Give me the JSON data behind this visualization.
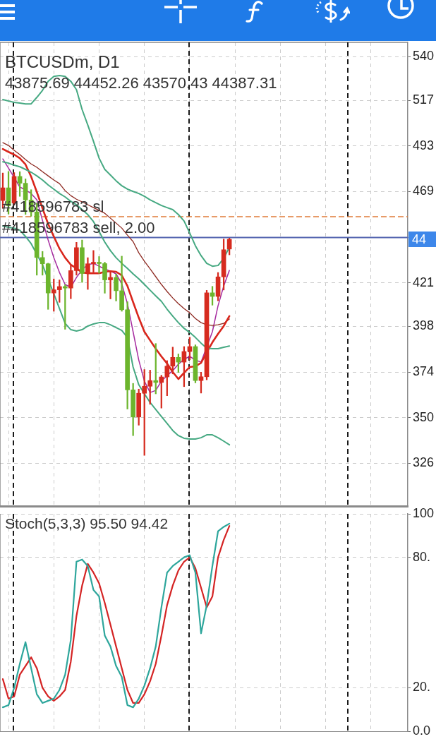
{
  "chart_data": [
    {
      "type": "candlestick",
      "title": "BTCUSDm, D1",
      "subtitle": "43875.69 44452.26 43570.43 44387.31",
      "categories": [
        null,
        null,
        null,
        null,
        null,
        null,
        null,
        null,
        null,
        null,
        null,
        null,
        null,
        null,
        null,
        null,
        null,
        null,
        null,
        null,
        null,
        null,
        null,
        null,
        null,
        null,
        null,
        null,
        null,
        null,
        null,
        null,
        null,
        null,
        null,
        null,
        null,
        null,
        null,
        null,
        null,
        null,
        null,
        null,
        null,
        null,
        null,
        null,
        null,
        null,
        null,
        null,
        null,
        null,
        null,
        null,
        null,
        null,
        null,
        null,
        null,
        null,
        null,
        null,
        null,
        null,
        null,
        null,
        null,
        null,
        null,
        null
      ],
      "ohlc": [
        [
          464.3,
          478.8,
          460.2,
          471.0
        ],
        [
          471.0,
          479.6,
          457.2,
          461.5
        ],
        [
          463.0,
          479.0,
          462.0,
          477.0
        ],
        [
          477.0,
          479.5,
          466.5,
          473.4
        ],
        [
          473.4,
          475.7,
          457.0,
          464.6
        ],
        [
          464.6,
          470.0,
          456.0,
          458.3
        ],
        [
          458.3,
          463.0,
          425.0,
          434.3
        ],
        [
          434.3,
          437.5,
          425.0,
          431.0
        ],
        [
          431.0,
          431.3,
          407.0,
          415.6
        ],
        [
          415.6,
          423.0,
          406.0,
          417.3
        ],
        [
          417.3,
          422.5,
          410.7,
          419.0
        ],
        [
          419.0,
          420.0,
          396.5,
          418.2
        ],
        [
          418.2,
          430.0,
          412.6,
          427.4
        ],
        [
          427.4,
          442.3,
          425.0,
          439.5
        ],
        [
          439.5,
          443.5,
          421.2,
          425.9
        ],
        [
          425.9,
          434.2,
          417.5,
          431.0
        ],
        [
          431.0,
          438.0,
          426.6,
          431.8
        ],
        [
          431.8,
          434.8,
          426.0,
          431.1
        ],
        [
          431.1,
          431.8,
          415.5,
          422.5
        ],
        [
          422.5,
          426.7,
          412.5,
          423.8
        ],
        [
          423.8,
          425.6,
          411.4,
          416.8
        ],
        [
          416.8,
          435.0,
          406.0,
          406.8
        ],
        [
          406.8,
          411.0,
          354.5,
          364.6
        ],
        [
          364.6,
          368.0,
          340.5,
          350.3
        ],
        [
          350.3,
          365.0,
          346.0,
          362.8
        ],
        [
          362.8,
          375.3,
          330.1,
          366.5
        ],
        [
          366.5,
          375.0,
          357.0,
          369.5
        ],
        [
          369.5,
          389.0,
          362.5,
          368.5
        ],
        [
          368.5,
          372.3,
          355.0,
          371.4
        ],
        [
          371.4,
          380.0,
          361.5,
          377.1
        ],
        [
          377.1,
          387.1,
          373.0,
          381.7
        ],
        [
          381.7,
          383.5,
          373.8,
          379.2
        ],
        [
          379.2,
          387.4,
          366.3,
          384.8
        ],
        [
          384.8,
          392.3,
          380.4,
          387.4
        ],
        [
          387.4,
          388.3,
          368.3,
          369.5
        ],
        [
          369.5,
          373.9,
          362.9,
          371.5
        ],
        [
          371.5,
          417.0,
          369.9,
          415.7
        ],
        [
          415.7,
          419.1,
          409.2,
          413.8
        ],
        [
          413.8,
          426.4,
          411.5,
          424.1
        ],
        [
          424.1,
          444.0,
          417.2,
          438.4
        ],
        [
          438.7569,
          444.5226,
          435.7043,
          443.8731
        ],
        null,
        null,
        null,
        null,
        null,
        null,
        null,
        null,
        null,
        null,
        null,
        null,
        null,
        null,
        null,
        null,
        null,
        null,
        null,
        null,
        null,
        null,
        null,
        null,
        null,
        null,
        null,
        null,
        null,
        null,
        null
      ],
      "colors": [
        "#d62b1f",
        "#6cb52d",
        "#d62b1f",
        "#6cb52d",
        "#6cb52d",
        "#6cb52d",
        "#6cb52d",
        "#6cb52d",
        "#6cb52d",
        "#d62b1f",
        "#d62b1f",
        "#6cb52d",
        "#d62b1f",
        "#d62b1f",
        "#6cb52d",
        "#d62b1f",
        "#d62b1f",
        "#6cb52d",
        "#6cb52d",
        "#d62b1f",
        "#6cb52d",
        "#6cb52d",
        "#6cb52d",
        "#6cb52d",
        "#d62b1f",
        "#d62b1f",
        "#d62b1f",
        "#6cb52d",
        "#d62b1f",
        "#d62b1f",
        "#d62b1f",
        "#6cb52d",
        "#d62b1f",
        "#d62b1f",
        "#6cb52d",
        "#d62b1f",
        "#d62b1f",
        "#6cb52d",
        "#d62b1f",
        "#d62b1f",
        "#d62b1f",
        null,
        null,
        null,
        null,
        null,
        null,
        null,
        null,
        null,
        null,
        null,
        null,
        null,
        null,
        null,
        null,
        null,
        null,
        null,
        null,
        null,
        null,
        null,
        null,
        null,
        null,
        null,
        null,
        null,
        null,
        null
      ],
      "series": [
        {
          "type": "line",
          "color": "#46a982",
          "values": [
            517.5,
            516.7,
            516.0,
            515.6,
            515.2,
            515.2,
            518.6,
            522.3,
            527.1,
            529.7,
            530.1,
            529.7,
            527.1,
            522.7,
            512.2,
            504.1,
            495.5,
            486.6,
            480.7,
            477.7,
            474.7,
            472.1,
            470.3,
            469.1,
            468.0,
            466.5,
            464.7,
            463.2,
            461.7,
            460.6,
            459.5,
            456.9,
            453.5,
            447.2,
            440.5,
            435.3,
            431.2,
            429.7,
            430.1,
            433.8,
            439.8,
            null,
            null,
            null,
            null,
            null,
            null,
            null,
            null,
            null,
            null,
            null,
            null,
            null,
            null,
            null,
            null,
            null,
            null,
            null,
            null,
            null,
            null,
            null,
            null,
            null,
            null,
            null,
            null,
            null,
            null,
            null
          ]
        },
        {
          "type": "line",
          "color": "#46a982",
          "values": [
            484.7,
            484.0,
            482.9,
            482.1,
            480.7,
            479.2,
            477.3,
            475.1,
            472.5,
            470.3,
            468.0,
            466.2,
            463.9,
            462.1,
            459.5,
            456.9,
            453.2,
            448.0,
            442.4,
            437.9,
            434.2,
            431.2,
            428.6,
            425.7,
            423.1,
            420.1,
            417.1,
            414.1,
            411.2,
            407.1,
            403.4,
            400.0,
            397.0,
            394.8,
            392.2,
            389.2,
            386.6,
            386.3,
            386.3,
            387.0,
            387.7,
            null,
            null,
            null,
            null,
            null,
            null,
            null,
            null,
            null,
            null,
            null,
            null,
            null,
            null,
            null,
            null,
            null,
            null,
            null,
            null,
            null,
            null,
            null,
            null,
            null,
            null,
            null,
            null,
            null,
            null,
            null
          ]
        },
        {
          "type": "line",
          "color": "#46a982",
          "values": [
            450.9,
            450.2,
            449.8,
            448.7,
            445.4,
            441.6,
            null,
            430.5,
            null,
            415.2,
            407.4,
            399.6,
            396.3,
            395.6,
            396.3,
            398.2,
            399.3,
            400.0,
            400.0,
            398.9,
            397.4,
            395.9,
            392.2,
            376.6,
            367.3,
            362.5,
            358.0,
            354.3,
            350.6,
            346.9,
            343.2,
            340.5,
            339.1,
            338.7,
            338.7,
            339.4,
            340.9,
            340.9,
            339.4,
            337.6,
            335.7,
            null,
            null,
            null,
            null,
            null,
            null,
            null,
            null,
            null,
            null,
            null,
            null,
            null,
            null,
            null,
            null,
            null,
            null,
            null,
            null,
            null,
            null,
            null,
            null,
            null,
            null,
            null,
            null,
            null,
            null,
            null
          ]
        },
        {
          "type": "line",
          "color": "#d9261c",
          "values": [
            491.4,
            489.9,
            488.5,
            486.6,
            483.3,
            476.9,
            468.8,
            460.2,
            452.0,
            445.4,
            439.0,
            434.2,
            430.5,
            428.6,
            426.4,
            426.0,
            426.0,
            426.0,
            426.8,
            427.1,
            426.8,
            424.9,
            419.3,
            410.8,
            402.6,
            395.2,
            390.7,
            386.3,
            382.2,
            378.5,
            374.0,
            370.3,
            373.6,
            376.6,
            377.0,
            378.8,
            384.4,
            389.6,
            394.1,
            398.2,
            403.4,
            null,
            null,
            null,
            null,
            null,
            null,
            null,
            null,
            null,
            null,
            null,
            null,
            null,
            null,
            null,
            null,
            null,
            null,
            null,
            null,
            null,
            null,
            null,
            null,
            null,
            null,
            null,
            null,
            null,
            null,
            null
          ]
        },
        {
          "type": "line",
          "color": "#8e2a22",
          "values": [
            494.8,
            493.3,
            490.7,
            488.5,
            485.9,
            483.6,
            481.8,
            479.5,
            477.3,
            475.1,
            473.2,
            469.5,
            466.9,
            465.0,
            463.6,
            462.1,
            460.6,
            459.1,
            457.6,
            455.0,
            452.4,
            449.8,
            446.1,
            442.7,
            436.8,
            432.3,
            428.3,
            424.2,
            420.1,
            416.4,
            413.0,
            410.0,
            407.4,
            405.2,
            402.2,
            400.0,
            398.9,
            398.5,
            398.9,
            399.6,
            401.9,
            null,
            null,
            null,
            null,
            null,
            null,
            null,
            null,
            null,
            null,
            null,
            null,
            null,
            null,
            null,
            null,
            null,
            null,
            null,
            null,
            null,
            null,
            null,
            null,
            null,
            null,
            null,
            null,
            null,
            null,
            null
          ]
        },
        {
          "type": "line",
          "color": "#a62ca0",
          "values": [
            486.2,
            481.4,
            null,
            471.4,
            469.9,
            468.0,
            464.7,
            453.9,
            443.5,
            434.2,
            426.4,
            420.1,
            418.6,
            423.8,
            427.9,
            430.5,
            431.2,
            429.7,
            428.3,
            427.1,
            425.7,
            420.5,
            410.0,
            395.2,
            380.3,
            369.2,
            363.2,
            364.3,
            369.2,
            372.1,
            374.7,
            378.1,
            380.7,
            382.2,
            380.3,
            379.2,
            null,
            395.2,
            408.9,
            419.3,
            427.5,
            null,
            null,
            null,
            null,
            null,
            null,
            null,
            null,
            null,
            null,
            null,
            null,
            null,
            null,
            null,
            null,
            null,
            null,
            null,
            null,
            null,
            null,
            null,
            null,
            null,
            null,
            null,
            null,
            null,
            null,
            null
          ]
        }
      ],
      "ylim": [
        303.4,
        547.6
      ],
      "yticks": [
        326,
        350,
        374,
        398,
        421,
        {
          "value": 445,
          "label": null
        },
        469,
        493,
        517,
        540
      ],
      "ref_lines": [
        {
          "axis": "y",
          "value": 455.8,
          "label": "#418596783 sl",
          "color": "#e07b39",
          "line_style": "dashed"
        },
        {
          "axis": "y",
          "value": 444.8,
          "label": "#418596783 sell, 2.00",
          "color": "#5566b0",
          "line_style": "solid"
        }
      ],
      "annotations": [
        "44"
      ],
      "grid": true,
      "marker": "none",
      "tick_labels": "y"
    },
    {
      "type": "line",
      "title": "Stoch(5,3,3) 95.50 94.42",
      "categories": [
        null,
        null,
        null,
        null,
        null,
        null,
        null,
        null,
        null,
        null,
        null,
        null,
        null,
        null,
        null,
        null,
        null,
        null,
        null,
        null,
        null,
        null,
        null,
        null,
        null,
        null,
        null,
        null,
        null,
        null,
        null,
        null,
        null,
        null,
        null,
        null,
        null,
        null,
        null,
        null,
        null,
        null,
        null,
        null,
        null,
        null,
        null,
        null,
        null,
        null,
        null,
        null,
        null,
        null,
        null,
        null,
        null,
        null,
        null,
        null,
        null,
        null,
        null,
        null,
        null,
        null,
        null,
        null,
        null,
        null,
        null,
        null
      ],
      "series": [
        {
          "color": "#2ea69c",
          "values": [
            11,
            12,
            20,
            31,
            41,
            29,
            17,
            13,
            14,
            15,
            19,
            26,
            42,
            78,
            79,
            76,
            65,
            62,
            44,
            39,
            30,
            25,
            12,
            11,
            15,
            21,
            29,
            39,
            57,
            73,
            76,
            78,
            80,
            81,
            73,
            45,
            58,
            76,
            92,
            94,
            95.5,
            null,
            null,
            null,
            null,
            null,
            null,
            null,
            null,
            null,
            null,
            null,
            null,
            null,
            null,
            null,
            null,
            null,
            null,
            null,
            null,
            null,
            null,
            null,
            null,
            null,
            null,
            null,
            null,
            null,
            null,
            null
          ]
        },
        {
          "color": "#d42424",
          "values": [
            24,
            15,
            16,
            26,
            30,
            34,
            29,
            20,
            16,
            14,
            16,
            19,
            32,
            53,
            67,
            77,
            73,
            68,
            59,
            49,
            39,
            29,
            19,
            13,
            13,
            17,
            23,
            31,
            44,
            58,
            67,
            74,
            78,
            80,
            75,
            66,
            57,
            62,
            80,
            88,
            94.42,
            null,
            null,
            null,
            null,
            null,
            null,
            null,
            null,
            null,
            null,
            null,
            null,
            null,
            null,
            null,
            null,
            null,
            null,
            null,
            null,
            null,
            null,
            null,
            null,
            null,
            null,
            null,
            null,
            null,
            null,
            null
          ]
        }
      ],
      "ylim": [
        0,
        100
      ],
      "yticks": [
        {
          "value": 0,
          "label": "0.0"
        },
        {
          "value": 20,
          "label": "20."
        },
        {
          "value": 80,
          "label": "80."
        },
        100
      ],
      "grid": true,
      "marker": "none",
      "tick_labels": "y"
    }
  ]
}
